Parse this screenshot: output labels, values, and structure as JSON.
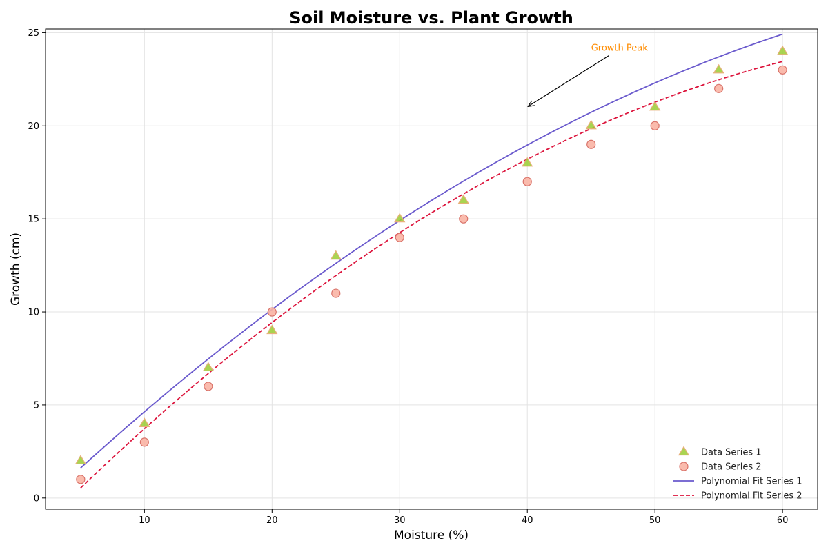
{
  "chart_data": {
    "type": "scatter",
    "title": "Soil Moisture vs. Plant Growth",
    "xlabel": "Moisture (%)",
    "ylabel": "Growth (cm)",
    "xlim": [
      2.25,
      62.75
    ],
    "ylim": [
      -0.6,
      25.2
    ],
    "xticks": [
      10,
      20,
      30,
      40,
      50,
      60
    ],
    "yticks": [
      0,
      5,
      10,
      15,
      20,
      25
    ],
    "grid": true,
    "legend_position": "bottom-right",
    "x": [
      5,
      10,
      15,
      20,
      25,
      30,
      35,
      40,
      45,
      50,
      55,
      60
    ],
    "series": [
      {
        "name": "Data Series 1",
        "kind": "scatter",
        "marker": "triangle",
        "color": "#9acd32",
        "edge_color": "#e8b07a",
        "values": [
          2,
          4,
          7,
          9,
          13,
          15,
          16,
          18,
          20,
          21,
          23,
          24
        ]
      },
      {
        "name": "Data Series 2",
        "kind": "scatter",
        "marker": "circle",
        "color": "#f9b4a4",
        "edge_color": "#d9736a",
        "values": [
          1,
          3,
          6,
          10,
          11,
          14,
          15,
          17,
          19,
          20,
          22,
          23
        ]
      }
    ],
    "fits": [
      {
        "name": "Polynomial Fit Series 1",
        "kind": "line",
        "style": "solid",
        "color": "#6a5acd",
        "x_range": [
          5,
          60
        ],
        "coefficients": [
          -0.0036,
          0.6577,
          -1.5818
        ]
      },
      {
        "name": "Polynomial Fit Series 2",
        "kind": "line",
        "style": "dashed",
        "color": "#dc143c",
        "x_range": [
          5,
          60
        ],
        "coefficients": [
          -0.0044,
          0.7026,
          -2.8614
        ]
      }
    ],
    "annotation": {
      "text": "Growth Peak",
      "color": "#ff8c00",
      "text_x": 45,
      "text_y": 24,
      "point_x": 40,
      "point_y": 21
    }
  }
}
